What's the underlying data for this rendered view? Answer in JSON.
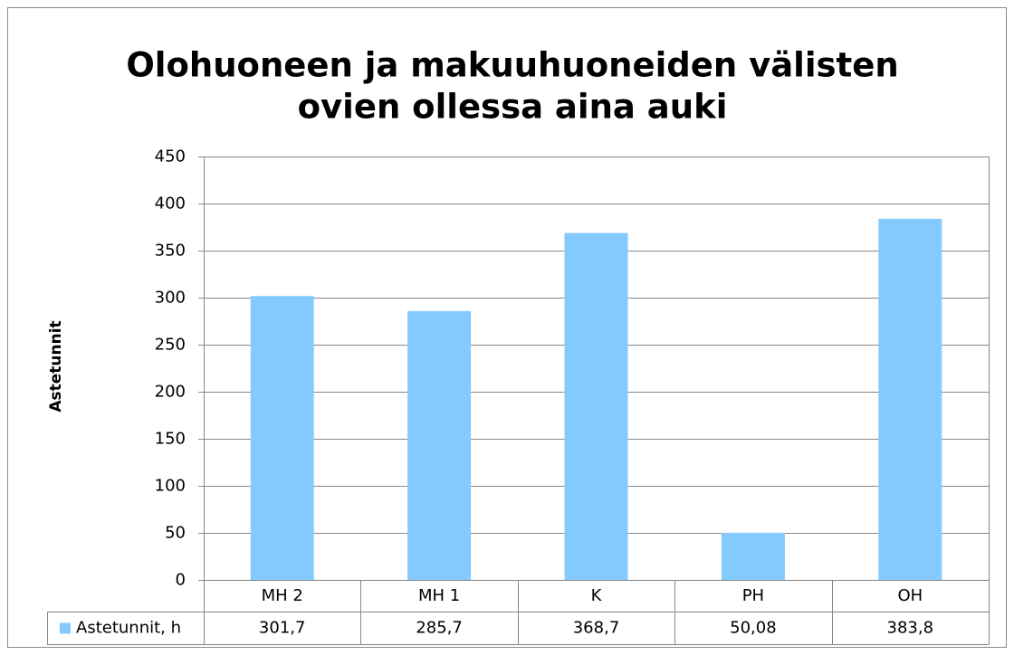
{
  "chart_data": {
    "type": "bar",
    "title": [
      "Olohuoneen ja makuuhuoneiden välisten",
      "ovien ollessa aina auki"
    ],
    "y_label": "Astetunnit",
    "categories": [
      "MH 2",
      "MH 1",
      "K",
      "PH",
      "OH"
    ],
    "series": [
      {
        "name": "Astetunnit, h",
        "color": "#84caff",
        "values": [
          301.7,
          285.7,
          368.7,
          50.08,
          383.8
        ],
        "value_labels": [
          "301,7",
          "285,7",
          "368,7",
          "50,08",
          "383,8"
        ]
      }
    ],
    "ylim": [
      0,
      450
    ],
    "yticks": [
      0,
      50,
      100,
      150,
      200,
      250,
      300,
      350,
      400,
      450
    ],
    "grid": true,
    "data_table": true
  }
}
